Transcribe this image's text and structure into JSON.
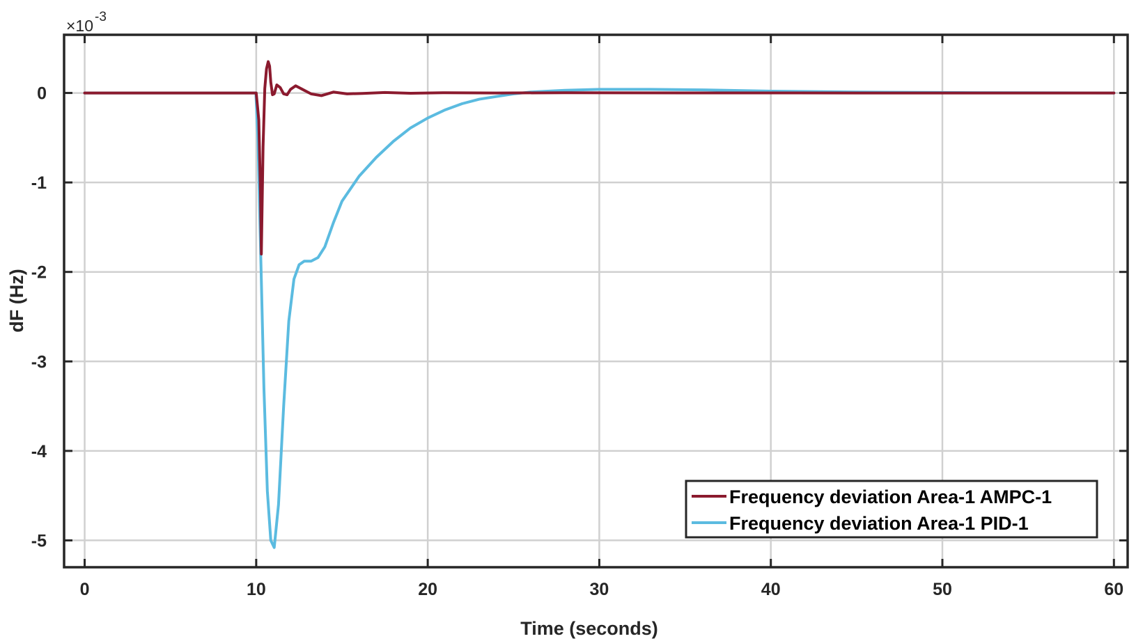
{
  "chart_data": {
    "type": "line",
    "title": "",
    "xlabel": "Time (seconds)",
    "ylabel": "dF (Hz)",
    "y_multiplier_label": "×10",
    "y_multiplier_exponent": "-3",
    "xlim": [
      -1.2,
      60.8
    ],
    "ylim": [
      -5.3,
      0.65
    ],
    "x_ticks": [
      0,
      10,
      20,
      30,
      40,
      50,
      60
    ],
    "y_ticks": [
      0,
      -1,
      -2,
      -3,
      -4,
      -5
    ],
    "grid": true,
    "legend_position": "bottom-right",
    "series": [
      {
        "name": "Frequency deviation Area-1 AMPC-1",
        "color": "#8b1a2e",
        "x": [
          0,
          10.0,
          10.15,
          10.25,
          10.3,
          10.4,
          10.5,
          10.6,
          10.7,
          10.78,
          10.85,
          10.95,
          11.05,
          11.2,
          11.4,
          11.6,
          11.8,
          12.0,
          12.3,
          12.7,
          13.2,
          13.8,
          14.5,
          15.3,
          16.2,
          17.5,
          19,
          21,
          24,
          28,
          35,
          45,
          60
        ],
        "y": [
          0,
          0,
          -0.3,
          -1.1,
          -1.8,
          -0.6,
          0.05,
          0.27,
          0.35,
          0.3,
          0.12,
          -0.02,
          -0.01,
          0.09,
          0.06,
          -0.01,
          -0.02,
          0.04,
          0.08,
          0.04,
          -0.01,
          -0.03,
          0.01,
          -0.01,
          -0.005,
          0.005,
          -0.003,
          0.003,
          0,
          0.002,
          0.001,
          0,
          0
        ]
      },
      {
        "name": "Frequency deviation Area-1 PID-1",
        "color": "#5bbbe0",
        "x": [
          0,
          9.98,
          10.1,
          10.25,
          10.45,
          10.65,
          10.85,
          11.05,
          11.3,
          11.6,
          11.9,
          12.2,
          12.5,
          12.8,
          13.2,
          13.6,
          14.0,
          14.5,
          15.0,
          16.0,
          17.0,
          18.0,
          19.0,
          20.0,
          21.0,
          22.0,
          23.0,
          24.0,
          25.0,
          26.0,
          27.0,
          28.0,
          30.0,
          33.0,
          36.0,
          40.0,
          45.0,
          50.0,
          55.0,
          60.0
        ],
        "y": [
          0,
          0,
          -0.5,
          -1.7,
          -3.3,
          -4.45,
          -5.0,
          -5.08,
          -4.6,
          -3.5,
          -2.55,
          -2.08,
          -1.92,
          -1.88,
          -1.88,
          -1.84,
          -1.72,
          -1.45,
          -1.21,
          -0.93,
          -0.72,
          -0.54,
          -0.39,
          -0.28,
          -0.19,
          -0.12,
          -0.07,
          -0.04,
          -0.01,
          0.01,
          0.02,
          0.03,
          0.04,
          0.04,
          0.035,
          0.02,
          0.01,
          0.005,
          0.002,
          0
        ]
      }
    ]
  }
}
